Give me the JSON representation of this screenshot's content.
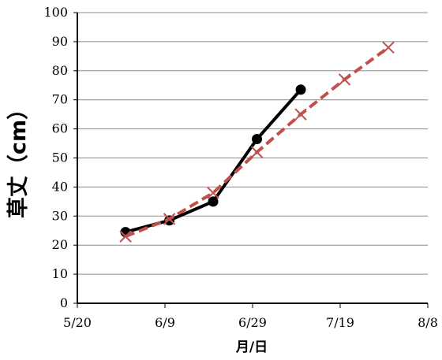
{
  "chart_data": {
    "type": "line",
    "title": "",
    "xlabel": "月/日",
    "ylabel": "草丈（cm）",
    "ylim": [
      0,
      100
    ],
    "yticks": [
      0,
      10,
      20,
      30,
      40,
      50,
      60,
      70,
      80,
      90,
      100
    ],
    "xlim": [
      "5/20",
      "8/8"
    ],
    "xticks": [
      "5/20",
      "6/9",
      "6/29",
      "7/19",
      "8/8"
    ],
    "grid": true,
    "legend": "none",
    "series": [
      {
        "color": "#000000",
        "line": "solid",
        "marker": "circle",
        "points": [
          {
            "x": "5/31",
            "y": 24.5
          },
          {
            "x": "6/10",
            "y": 28.5
          },
          {
            "x": "6/20",
            "y": 35
          },
          {
            "x": "6/30",
            "y": 56.5
          },
          {
            "x": "7/10",
            "y": 73.5
          }
        ]
      },
      {
        "color": "#c0504d",
        "line": "dashed",
        "marker": "x",
        "points": [
          {
            "x": "5/31",
            "y": 23
          },
          {
            "x": "6/10",
            "y": 29
          },
          {
            "x": "6/20",
            "y": 38
          },
          {
            "x": "6/30",
            "y": 52
          },
          {
            "x": "7/10",
            "y": 65
          },
          {
            "x": "7/20",
            "y": 77
          },
          {
            "x": "7/30",
            "y": 88
          }
        ]
      }
    ]
  }
}
